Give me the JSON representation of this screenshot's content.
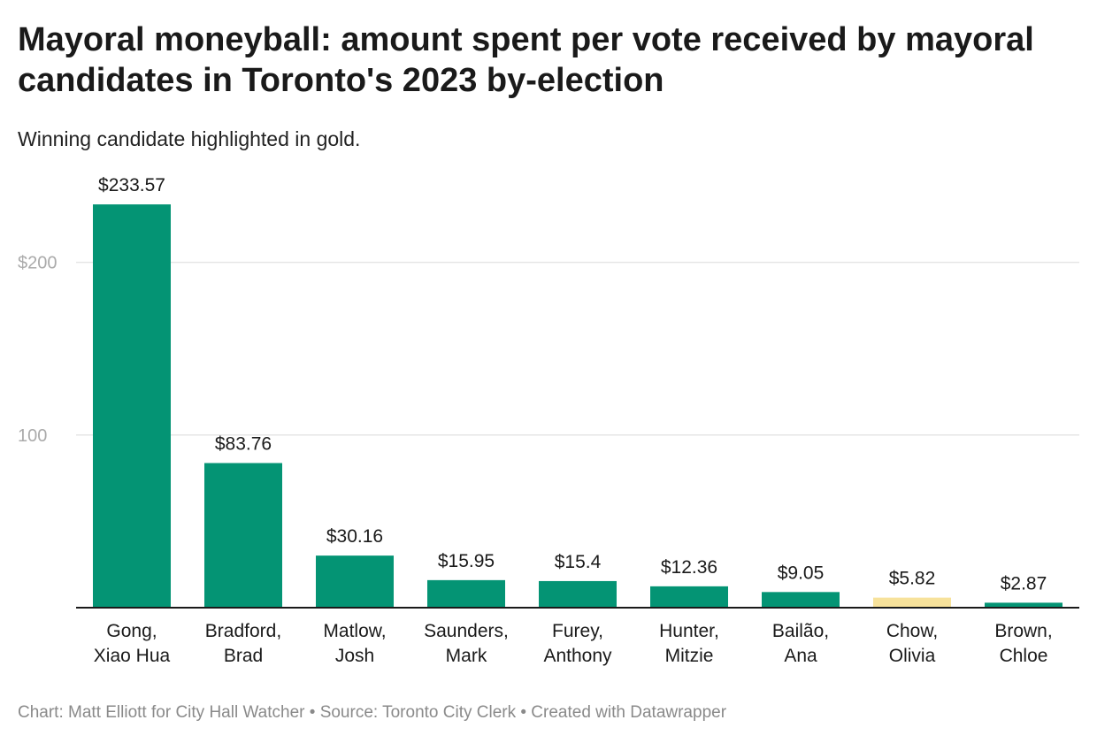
{
  "header": {
    "title": "Mayoral moneyball: amount spent per vote received by mayoral candidates in Toronto's 2023 by-election",
    "subtitle": "Winning candidate highlighted in gold."
  },
  "footer": {
    "credit": "Chart: Matt Elliott for City Hall Watcher • Source: Toronto City Clerk • Created with Datawrapper"
  },
  "chart_data": {
    "type": "bar",
    "title": "Mayoral moneyball: amount spent per vote received by mayoral candidates in Toronto's 2023 by-election",
    "subtitle": "Winning candidate highlighted in gold.",
    "xlabel": "",
    "ylabel": "",
    "ylim": [
      0,
      250
    ],
    "grid": true,
    "yticks": [
      {
        "value": 100,
        "label": "100"
      },
      {
        "value": 200,
        "label": "$200"
      }
    ],
    "categories": [
      [
        "Gong,",
        "Xiao Hua"
      ],
      [
        "Bradford,",
        "Brad"
      ],
      [
        "Matlow,",
        "Josh"
      ],
      [
        "Saunders,",
        "Mark"
      ],
      [
        "Furey,",
        "Anthony"
      ],
      [
        "Hunter,",
        "Mitzie"
      ],
      [
        "Bailão,",
        "Ana"
      ],
      [
        "Chow,",
        "Olivia"
      ],
      [
        "Brown,",
        "Chloe"
      ]
    ],
    "values": [
      233.57,
      83.76,
      30.16,
      15.95,
      15.4,
      12.36,
      9.05,
      5.82,
      2.87
    ],
    "value_labels": [
      "$233.57",
      "$83.76",
      "$30.16",
      "$15.95",
      "$15.4",
      "$12.36",
      "$9.05",
      "$5.82",
      "$2.87"
    ],
    "highlight_index": 7,
    "colors": {
      "bar": "#049474",
      "highlight": "#f7e29b",
      "grid": "#e6e6e6",
      "axis": "#1a1a1a"
    }
  }
}
